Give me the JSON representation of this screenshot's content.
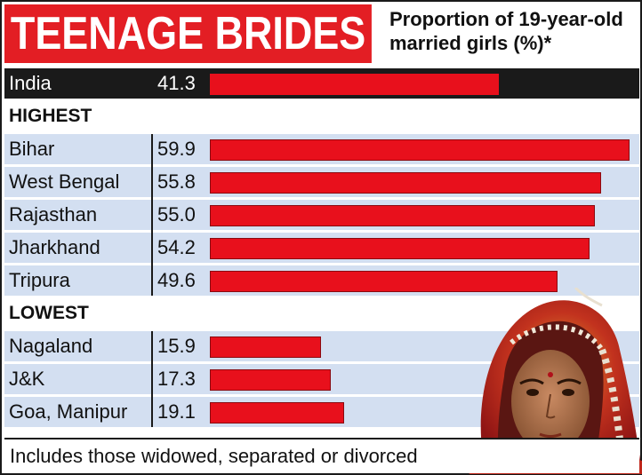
{
  "chart_data": {
    "type": "bar",
    "orientation": "horizontal",
    "title": "TEENAGE BRIDES",
    "subtitle": "Proportion of 19-year-old married girls (%)*",
    "xlim": [
      0,
      62
    ],
    "national": {
      "name": "India",
      "value": 41.3,
      "value_label": "41.3"
    },
    "groups": [
      {
        "heading": "HIGHEST",
        "categories": [
          "Bihar",
          "West Bengal",
          "Rajasthan",
          "Jharkhand",
          "Tripura"
        ],
        "values": [
          59.9,
          55.8,
          55.0,
          54.2,
          49.6
        ],
        "value_labels": [
          "59.9",
          "55.8",
          "55.0",
          "54.2",
          "49.6"
        ]
      },
      {
        "heading": "LOWEST",
        "categories": [
          "Nagaland",
          "J&K",
          "Goa, Manipur"
        ],
        "values": [
          15.9,
          17.3,
          19.1
        ],
        "value_labels": [
          "15.9",
          "17.3",
          "19.1"
        ]
      }
    ],
    "footnote": "Includes those widowed, separated or divorced"
  },
  "colors": {
    "title_bg": "#e31e24",
    "bar": "#e8101c",
    "row_shade": "#d3dff1",
    "india_row": "#1a1a1a"
  },
  "illustration": "bride-photo-illustration"
}
